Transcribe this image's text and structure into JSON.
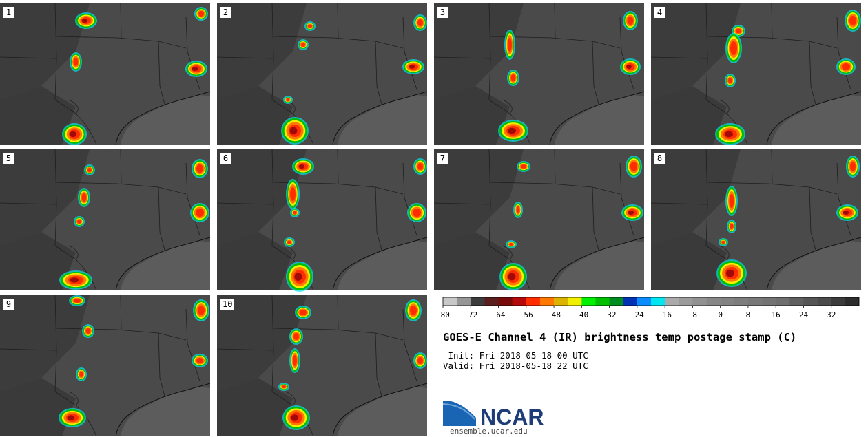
{
  "figure": {
    "title": "GOES-E Channel 4 (IR) brightness temp postage stamp (C)",
    "init_label": " Init: Fri 2018-05-18 00 UTC",
    "valid_label": "Valid: Fri 2018-05-18 22 UTC",
    "logo_text": "NCAR",
    "logo_url": "ensemble.ucar.edu"
  },
  "panels": [
    {
      "label": "1"
    },
    {
      "label": "2"
    },
    {
      "label": "3"
    },
    {
      "label": "4"
    },
    {
      "label": "5"
    },
    {
      "label": "6"
    },
    {
      "label": "7"
    },
    {
      "label": "8"
    },
    {
      "label": "9"
    },
    {
      "label": "10"
    }
  ],
  "chart_data": {
    "type": "heatmap",
    "colorbar": {
      "ticks": [
        -80,
        -72,
        -64,
        -56,
        -48,
        -40,
        -32,
        -24,
        -16,
        -8,
        0,
        8,
        16,
        24,
        32
      ],
      "min": -80,
      "max": 40,
      "step": 4,
      "colors": [
        "#c8c8c8",
        "#969696",
        "#3c3c3c",
        "#5a1e1e",
        "#780a0a",
        "#b40a0a",
        "#ff2d00",
        "#ff7800",
        "#dcb400",
        "#f0f000",
        "#00f000",
        "#00be00",
        "#008c1e",
        "#0032b4",
        "#0a8cff",
        "#00e6f0",
        "#aaaaaa",
        "#9b9b9b",
        "#919191",
        "#878787",
        "#828282",
        "#7d7d7d",
        "#787878",
        "#737373",
        "#6e6e6e",
        "#5f5f5f",
        "#555555",
        "#4b4b4b",
        "#3c3c3c",
        "#2d2d2d"
      ]
    }
  }
}
